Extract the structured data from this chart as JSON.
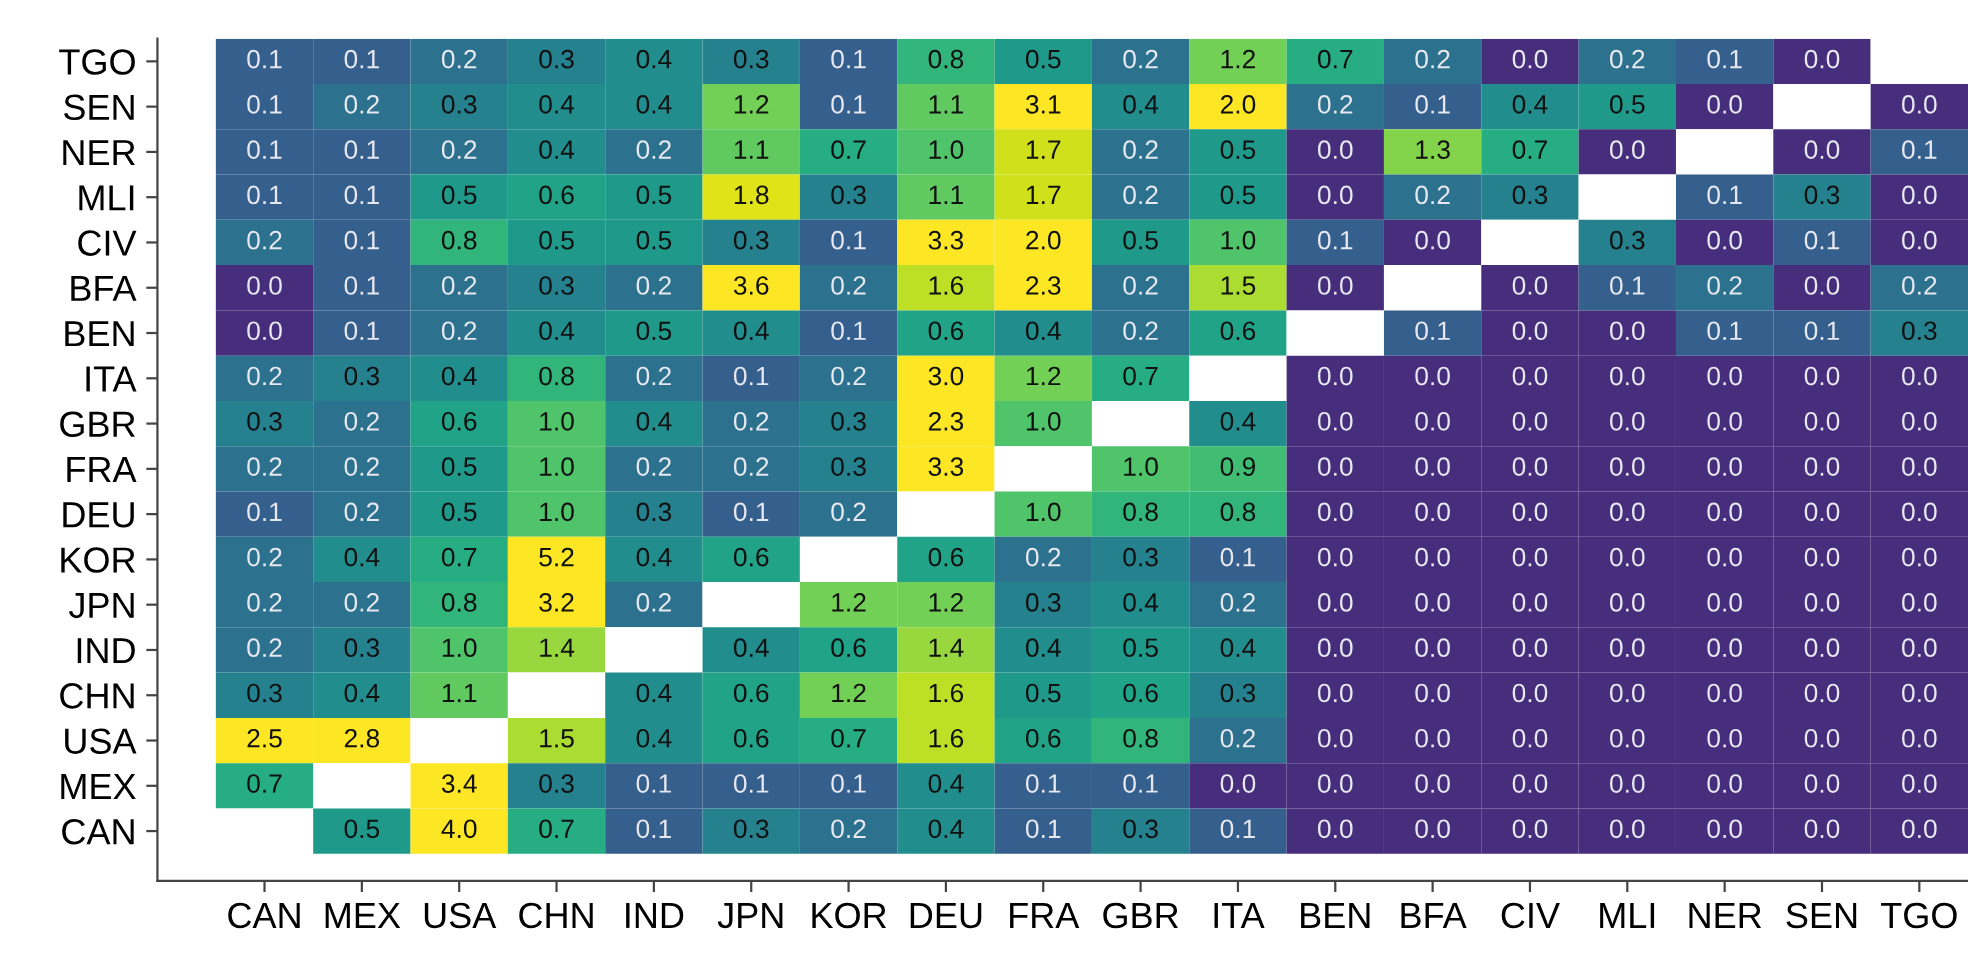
{
  "chart_data": {
    "type": "heatmap",
    "categories": [
      "CAN",
      "MEX",
      "USA",
      "CHN",
      "IND",
      "JPN",
      "KOR",
      "DEU",
      "FRA",
      "GBR",
      "ITA",
      "BEN",
      "BFA",
      "CIV",
      "MLI",
      "NER",
      "SEN",
      "TGO"
    ],
    "y_categories": [
      "TGO",
      "SEN",
      "NER",
      "MLI",
      "CIV",
      "BFA",
      "BEN",
      "ITA",
      "GBR",
      "FRA",
      "DEU",
      "KOR",
      "JPN",
      "IND",
      "CHN",
      "USA",
      "MEX",
      "CAN"
    ],
    "cells": [
      [
        0.1,
        0.1,
        0.2,
        0.3,
        0.4,
        0.3,
        0.1,
        0.8,
        0.5,
        0.2,
        1.2,
        0.7,
        0.2,
        0.0,
        0.2,
        0.1,
        0.0,
        null
      ],
      [
        0.1,
        0.2,
        0.3,
        0.4,
        0.4,
        1.2,
        0.1,
        1.1,
        3.1,
        0.4,
        2.0,
        0.2,
        0.1,
        0.4,
        0.5,
        0.0,
        null,
        0.0
      ],
      [
        0.1,
        0.1,
        0.2,
        0.4,
        0.2,
        1.1,
        0.7,
        1.0,
        1.7,
        0.2,
        0.5,
        0.0,
        1.3,
        0.7,
        0.0,
        null,
        0.0,
        0.1
      ],
      [
        0.1,
        0.1,
        0.5,
        0.6,
        0.5,
        1.8,
        0.3,
        1.1,
        1.7,
        0.2,
        0.5,
        0.0,
        0.2,
        0.3,
        null,
        0.1,
        0.3,
        0.0
      ],
      [
        0.2,
        0.1,
        0.8,
        0.5,
        0.5,
        0.3,
        0.1,
        3.3,
        2.0,
        0.5,
        1.0,
        0.1,
        0.0,
        null,
        0.3,
        0.0,
        0.1,
        0.0
      ],
      [
        0.0,
        0.1,
        0.2,
        0.3,
        0.2,
        3.6,
        0.2,
        1.6,
        2.3,
        0.2,
        1.5,
        0.0,
        null,
        0.0,
        0.1,
        0.2,
        0.0,
        0.2
      ],
      [
        0.0,
        0.1,
        0.2,
        0.4,
        0.5,
        0.4,
        0.1,
        0.6,
        0.4,
        0.2,
        0.6,
        null,
        0.1,
        0.0,
        0.0,
        0.1,
        0.1,
        0.3
      ],
      [
        0.2,
        0.3,
        0.4,
        0.8,
        0.2,
        0.1,
        0.2,
        3.0,
        1.2,
        0.7,
        null,
        0.0,
        0.0,
        0.0,
        0.0,
        0.0,
        0.0,
        0.0
      ],
      [
        0.3,
        0.2,
        0.6,
        1.0,
        0.4,
        0.2,
        0.3,
        2.3,
        1.0,
        null,
        0.4,
        0.0,
        0.0,
        0.0,
        0.0,
        0.0,
        0.0,
        0.0
      ],
      [
        0.2,
        0.2,
        0.5,
        1.0,
        0.2,
        0.2,
        0.3,
        3.3,
        null,
        1.0,
        0.9,
        0.0,
        0.0,
        0.0,
        0.0,
        0.0,
        0.0,
        0.0
      ],
      [
        0.1,
        0.2,
        0.5,
        1.0,
        0.3,
        0.1,
        0.2,
        null,
        1.0,
        0.8,
        0.8,
        0.0,
        0.0,
        0.0,
        0.0,
        0.0,
        0.0,
        0.0
      ],
      [
        0.2,
        0.4,
        0.7,
        5.2,
        0.4,
        0.6,
        null,
        0.6,
        0.2,
        0.3,
        0.1,
        0.0,
        0.0,
        0.0,
        0.0,
        0.0,
        0.0,
        0.0
      ],
      [
        0.2,
        0.2,
        0.8,
        3.2,
        0.2,
        null,
        1.2,
        1.2,
        0.3,
        0.4,
        0.2,
        0.0,
        0.0,
        0.0,
        0.0,
        0.0,
        0.0,
        0.0
      ],
      [
        0.2,
        0.3,
        1.0,
        1.4,
        null,
        0.4,
        0.6,
        1.4,
        0.4,
        0.5,
        0.4,
        0.0,
        0.0,
        0.0,
        0.0,
        0.0,
        0.0,
        0.0
      ],
      [
        0.3,
        0.4,
        1.1,
        null,
        0.4,
        0.6,
        1.2,
        1.6,
        0.5,
        0.6,
        0.3,
        0.0,
        0.0,
        0.0,
        0.0,
        0.0,
        0.0,
        0.0
      ],
      [
        2.5,
        2.8,
        null,
        1.5,
        0.4,
        0.6,
        0.7,
        1.6,
        0.6,
        0.8,
        0.2,
        0.0,
        0.0,
        0.0,
        0.0,
        0.0,
        0.0,
        0.0
      ],
      [
        0.7,
        null,
        3.4,
        0.3,
        0.1,
        0.1,
        0.1,
        0.4,
        0.1,
        0.1,
        0.0,
        0.0,
        0.0,
        0.0,
        0.0,
        0.0,
        0.0,
        0.0
      ],
      [
        null,
        0.5,
        4.0,
        0.7,
        0.1,
        0.3,
        0.2,
        0.4,
        0.1,
        0.3,
        0.1,
        0.0,
        0.0,
        0.0,
        0.0,
        0.0,
        0.0,
        0.0
      ]
    ],
    "cell_labels": [
      [
        "0.1",
        "0.1",
        "0.2",
        "0.3",
        "0.4",
        "0.3",
        "0.1",
        "0.8",
        "0.5",
        "0.2",
        "1.2",
        "0.7",
        "0.2",
        "0.0",
        "0.2",
        "0.1",
        "0.0",
        null
      ],
      [
        "0.1",
        "0.2",
        "0.3",
        "0.4",
        "0.4",
        "1.2",
        "0.1",
        "1.1",
        "3.1",
        "0.4",
        "2.0",
        "0.2",
        "0.1",
        "0.4",
        "0.5",
        "0.0",
        null,
        "0.0"
      ],
      [
        "0.1",
        "0.1",
        "0.2",
        "0.4",
        "0.2",
        "1.1",
        "0.7",
        "1.0",
        "1.7",
        "0.2",
        "0.5",
        "0.0",
        "1.3",
        "0.7",
        "0.0",
        null,
        "0.0",
        "0.1"
      ],
      [
        "0.1",
        "0.1",
        "0.5",
        "0.6",
        "0.5",
        "1.8",
        "0.3",
        "1.1",
        "1.7",
        "0.2",
        "0.5",
        "0.0",
        "0.2",
        "0.3",
        null,
        "0.1",
        "0.3",
        "0.0"
      ],
      [
        "0.2",
        "0.1",
        "0.8",
        "0.5",
        "0.5",
        "0.3",
        "0.1",
        "3.3",
        "2.0",
        "0.5",
        "1.0",
        "0.1",
        "0.0",
        null,
        "0.3",
        "0.0",
        "0.1",
        "0.0"
      ],
      [
        "0.0",
        "0.1",
        "0.2",
        "0.3",
        "0.2",
        "3.6",
        "0.2",
        "1.6",
        "2.3",
        "0.2",
        "1.5",
        "0.0",
        null,
        "0.0",
        "0.1",
        "0.2",
        "0.0",
        "0.2"
      ],
      [
        "0.0",
        "0.1",
        "0.2",
        "0.4",
        "0.5",
        "0.4",
        "0.1",
        "0.6",
        "0.4",
        "0.2",
        "0.6",
        null,
        "0.1",
        "0.0",
        "0.0",
        "0.1",
        "0.1",
        "0.3"
      ],
      [
        "0.2",
        "0.3",
        "0.4",
        "0.8",
        "0.2",
        "0.1",
        "0.2",
        "3.0",
        "1.2",
        "0.7",
        null,
        "0.0",
        "0.0",
        "0.0",
        "0.0",
        "0.0",
        "0.0",
        "0.0"
      ],
      [
        "0.3",
        "0.2",
        "0.6",
        "1.0",
        "0.4",
        "0.2",
        "0.3",
        "2.3",
        "1.0",
        null,
        "0.4",
        "0.0",
        "0.0",
        "0.0",
        "0.0",
        "0.0",
        "0.0",
        "0.0"
      ],
      [
        "0.2",
        "0.2",
        "0.5",
        "1.0",
        "0.2",
        "0.2",
        "0.3",
        "3.3",
        null,
        "1.0",
        "0.9",
        "0.0",
        "0.0",
        "0.0",
        "0.0",
        "0.0",
        "0.0",
        "0.0"
      ],
      [
        "0.1",
        "0.2",
        "0.5",
        "1.0",
        "0.3",
        "0.1",
        "0.2",
        null,
        "1.0",
        "0.8",
        "0.8",
        "0.0",
        "0.0",
        "0.0",
        "0.0",
        "0.0",
        "0.0",
        "0.0"
      ],
      [
        "0.2",
        "0.4",
        "0.7",
        "5.2",
        "0.4",
        "0.6",
        null,
        "0.6",
        "0.2",
        "0.3",
        "0.1",
        "0.0",
        "0.0",
        "0.0",
        "0.0",
        "0.0",
        "0.0",
        "0.0"
      ],
      [
        "0.2",
        "0.2",
        "0.8",
        "3.2",
        "0.2",
        null,
        "1.2",
        "1.2",
        "0.3",
        "0.4",
        "0.2",
        "0.0",
        "0.0",
        "0.0",
        "0.0",
        "0.0",
        "0.0",
        "0.0"
      ],
      [
        "0.2",
        "0.3",
        "1.0",
        "1.4",
        null,
        "0.4",
        "0.6",
        "1.4",
        "0.4",
        "0.5",
        "0.4",
        "0.0",
        "0.0",
        "0.0",
        "0.0",
        "0.0",
        "0.0",
        "0.0"
      ],
      [
        "0.3",
        "0.4",
        "1.1",
        null,
        "0.4",
        "0.6",
        "1.2",
        "1.6",
        "0.5",
        "0.6",
        "0.3",
        "0.0",
        "0.0",
        "0.0",
        "0.0",
        "0.0",
        "0.0",
        "0.0"
      ],
      [
        "2.5",
        "2.8",
        null,
        "1.5",
        "0.4",
        "0.6",
        "0.7",
        "1.6",
        "0.6",
        "0.8",
        "0.2",
        "0.0",
        "0.0",
        "0.0",
        "0.0",
        "0.0",
        "0.0",
        "0.0"
      ],
      [
        "0.7",
        null,
        "3.4",
        "0.3",
        "0.1",
        "0.1",
        "0.1",
        "0.4",
        "0.1",
        "0.1",
        "0.0",
        "0.0",
        "0.0",
        "0.0",
        "0.0",
        "0.0",
        "0.0",
        "0.0"
      ],
      [
        null,
        "0.5",
        "4.0",
        "0.7",
        "0.1",
        "0.3",
        "0.2",
        "0.4",
        "0.1",
        "0.3",
        "0.1",
        "0.0",
        "0.0",
        "0.0",
        "0.0",
        "0.0",
        "0.0",
        "0.0"
      ]
    ],
    "data_labels": true
  }
}
